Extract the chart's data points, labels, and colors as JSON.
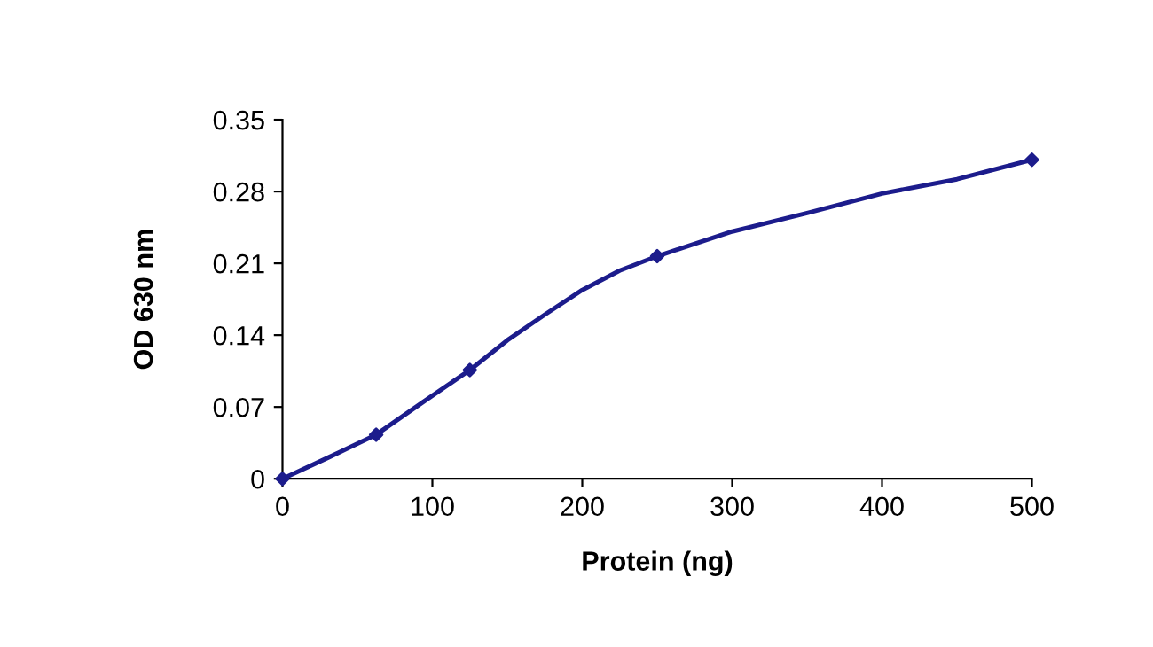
{
  "chart_data": {
    "type": "line",
    "xlabel": "Protein (ng)",
    "ylabel": "OD 630 nm",
    "series": [
      {
        "color": "#1c1c8c",
        "x": [
          0,
          31,
          62.5,
          94,
          125,
          150,
          175,
          200,
          225,
          250,
          300,
          350,
          400,
          450,
          500
        ],
        "values": [
          0,
          0.021,
          0.043,
          0.075,
          0.106,
          0.135,
          0.16,
          0.184,
          0.203,
          0.217,
          0.241,
          0.259,
          0.278,
          0.292,
          0.311
        ]
      },
      {
        "type": "scatter",
        "marker": "diamond",
        "color": "#1c1c8c",
        "x": [
          0,
          62.5,
          125,
          250,
          500
        ],
        "values": [
          0,
          0.043,
          0.106,
          0.217,
          0.311
        ]
      }
    ],
    "xlim": [
      0,
      500
    ],
    "xticks": [
      0,
      100,
      200,
      300,
      400,
      500
    ],
    "ylim": [
      0,
      0.35
    ],
    "yticks": [
      0,
      0.07,
      0.14,
      0.21,
      0.28,
      0.35
    ],
    "grid": false,
    "legend": false,
    "line_style": "solid"
  }
}
